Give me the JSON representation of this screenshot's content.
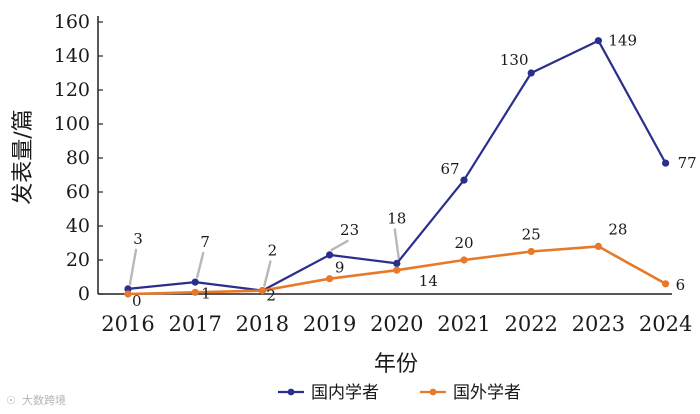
{
  "chart_data": {
    "type": "line",
    "categories": [
      "2016",
      "2017",
      "2018",
      "2019",
      "2020",
      "2021",
      "2022",
      "2023",
      "2024"
    ],
    "series": [
      {
        "name": "国内学者",
        "color": "#2b2f8c",
        "values": [
          3,
          7,
          2,
          23,
          18,
          67,
          130,
          149,
          77
        ]
      },
      {
        "name": "国外学者",
        "color": "#e8782a",
        "values": [
          0,
          1,
          2,
          9,
          14,
          20,
          25,
          28,
          6
        ]
      }
    ],
    "xlabel": "年份",
    "ylabel": "发表量/篇",
    "ylim": [
      0,
      160
    ],
    "yticks": [
      0,
      20,
      40,
      60,
      80,
      100,
      120,
      140,
      160
    ],
    "grid": false,
    "legend": "bottom"
  },
  "watermark": "大数跨境"
}
